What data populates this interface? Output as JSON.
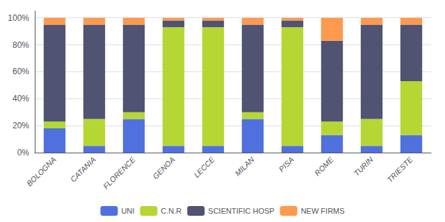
{
  "chart_data": {
    "type": "bar",
    "stacked": true,
    "grid": true,
    "categories": [
      "BOLOGNA",
      "CATANIA",
      "FLORENCE",
      "GENOA",
      "LECCE",
      "MILAN",
      "PISA",
      "ROME",
      "TURIN",
      "TRIESTE"
    ],
    "series": [
      {
        "name": "UNI",
        "values": [
          18,
          5,
          25,
          5,
          5,
          25,
          5,
          13,
          5,
          13
        ]
      },
      {
        "name": "C.N.R",
        "values": [
          5,
          20,
          5,
          88,
          88,
          5,
          88,
          10,
          20,
          40
        ]
      },
      {
        "name": "SCIENTIFIC HOSP",
        "values": [
          72,
          70,
          65,
          5,
          5,
          65,
          5,
          60,
          70,
          42
        ]
      },
      {
        "name": "NEW FIRMS",
        "values": [
          5,
          5,
          5,
          2,
          2,
          5,
          2,
          17,
          5,
          5
        ]
      }
    ],
    "ylim": [
      0,
      105
    ],
    "yticks": [
      {
        "value": 0,
        "label": "0%"
      },
      {
        "value": 20,
        "label": "20%"
      },
      {
        "value": 40,
        "label": "40%"
      },
      {
        "value": 60,
        "label": "60%"
      },
      {
        "value": 80,
        "label": "80%"
      },
      {
        "value": 100,
        "label": "100%"
      }
    ]
  }
}
